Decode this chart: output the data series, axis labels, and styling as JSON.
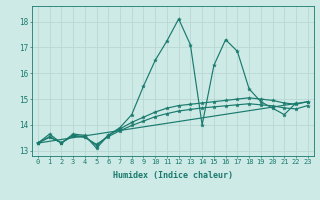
{
  "xlabel": "Humidex (Indice chaleur)",
  "bg_color": "#ceeae6",
  "grid_color": "#b8d8d4",
  "line_color": "#1a7a6e",
  "xlim": [
    -0.5,
    23.5
  ],
  "ylim": [
    12.8,
    18.6
  ],
  "yticks": [
    13,
    14,
    15,
    16,
    17,
    18
  ],
  "xticks": [
    0,
    1,
    2,
    3,
    4,
    5,
    6,
    7,
    8,
    9,
    10,
    11,
    12,
    13,
    14,
    15,
    16,
    17,
    18,
    19,
    20,
    21,
    22,
    23
  ],
  "series": [
    {
      "x": [
        0,
        1,
        2,
        3,
        4,
        5,
        6,
        7,
        8,
        9,
        10,
        11,
        12,
        13,
        14,
        15,
        16,
        17,
        18,
        19,
        20,
        21,
        22
      ],
      "y": [
        13.3,
        13.65,
        13.3,
        13.65,
        13.6,
        13.1,
        13.6,
        13.9,
        14.4,
        15.5,
        16.5,
        17.25,
        18.1,
        17.1,
        14.0,
        16.3,
        17.3,
        16.85,
        15.4,
        14.9,
        14.65,
        14.4,
        14.85
      ]
    },
    {
      "x": [
        0,
        1,
        2,
        3,
        4,
        5,
        6,
        7,
        8,
        9,
        10,
        11,
        12,
        13,
        14,
        15,
        16,
        17,
        18,
        19,
        20,
        21,
        22,
        23
      ],
      "y": [
        13.3,
        13.55,
        13.3,
        13.6,
        13.55,
        13.2,
        13.6,
        13.85,
        14.1,
        14.3,
        14.5,
        14.65,
        14.75,
        14.8,
        14.85,
        14.9,
        14.95,
        15.0,
        15.05,
        15.0,
        14.95,
        14.85,
        14.8,
        14.9
      ]
    },
    {
      "x": [
        0,
        1,
        2,
        3,
        4,
        5,
        6,
        7,
        8,
        9,
        10,
        11,
        12,
        13,
        14,
        15,
        16,
        17,
        18,
        19,
        20,
        21,
        22,
        23
      ],
      "y": [
        13.3,
        13.52,
        13.32,
        13.56,
        13.52,
        13.25,
        13.55,
        13.78,
        13.98,
        14.15,
        14.32,
        14.44,
        14.54,
        14.6,
        14.66,
        14.7,
        14.74,
        14.78,
        14.82,
        14.78,
        14.74,
        14.66,
        14.62,
        14.75
      ]
    },
    {
      "x": [
        0,
        23
      ],
      "y": [
        13.3,
        14.9
      ]
    }
  ]
}
